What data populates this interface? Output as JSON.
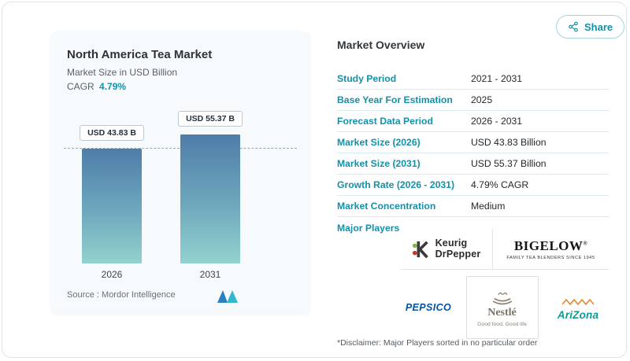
{
  "colors": {
    "accent": "#1391a9",
    "bar_top": "#4e7da9",
    "bar_bottom": "#93d2cf"
  },
  "share_button": {
    "label": "Share"
  },
  "left_panel": {
    "title": "North America Tea Market",
    "subtitle": "Market Size in USD Billion",
    "cagr_label": "CAGR",
    "cagr_value": "4.79%",
    "source_label": "Source :",
    "source_value": "Mordor Intelligence"
  },
  "chart_data": {
    "type": "bar",
    "title": "North America Tea Market",
    "ylabel": "Market Size in USD Billion",
    "categories": [
      "2026",
      "2031"
    ],
    "values": [
      43.83,
      55.37
    ],
    "value_labels": [
      "USD 43.83 B",
      "USD 55.37 B"
    ],
    "unit": "USD Billion",
    "cagr_percent": 4.79,
    "ylim": [
      0,
      60
    ],
    "grid": "off",
    "legend": "off",
    "reference_line": {
      "at": 43.83,
      "style": "dashed"
    }
  },
  "overview": {
    "heading": "Market Overview",
    "rows": [
      {
        "label": "Study Period",
        "value": "2021 - 2031"
      },
      {
        "label": "Base Year For Estimation",
        "value": "2025"
      },
      {
        "label": "Forecast Data Period",
        "value": "2026 - 2031"
      },
      {
        "label": "Market Size (2026)",
        "value": "USD 43.83 Billion"
      },
      {
        "label": "Market Size (2031)",
        "value": "USD 55.37 Billion"
      },
      {
        "label": "Growth Rate (2026 - 2031)",
        "value": "4.79% CAGR"
      },
      {
        "label": "Market Concentration",
        "value": "Medium"
      },
      {
        "label": "Major Players",
        "value": ""
      }
    ],
    "players": [
      {
        "name": "Keurig Dr Pepper",
        "line1": "Keurig",
        "line2": "DrPepper"
      },
      {
        "name": "Bigelow",
        "wordmark": "BIGELOW",
        "reg": "®",
        "tagline": "FAMILY TEA BLENDERS SINCE 1945"
      },
      {
        "name": "PepsiCo",
        "wordmark": "PEPSICO"
      },
      {
        "name": "Nestlé",
        "wordmark": "Nestlé",
        "tagline": "Good food, Good life"
      },
      {
        "name": "AriZona",
        "wordmark": "AriZona"
      }
    ],
    "disclaimer": "*Disclaimer: Major Players sorted in no particular order"
  }
}
